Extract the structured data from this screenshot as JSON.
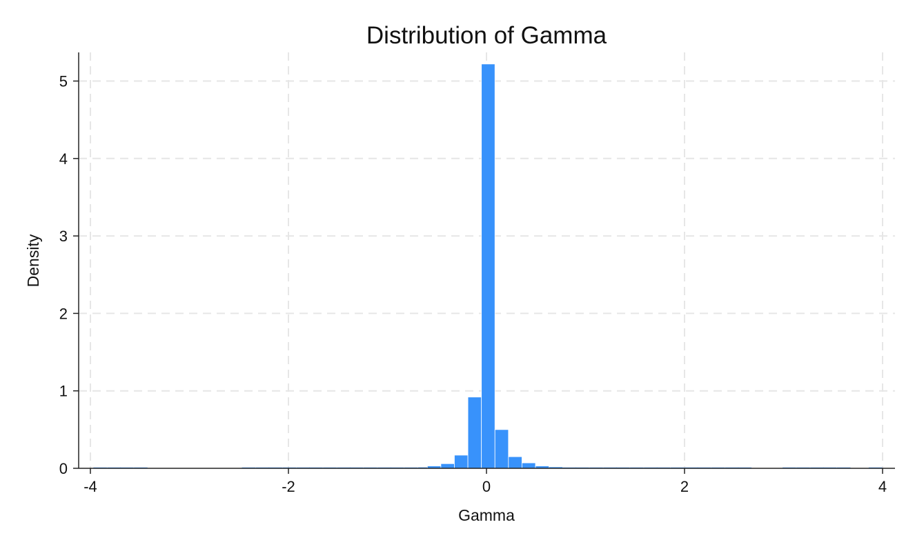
{
  "chart_data": {
    "type": "bar",
    "title": "Distribution of Gamma",
    "xlabel": "Gamma",
    "ylabel": "Density",
    "xlim": [
      -4.1,
      4.1
    ],
    "ylim": [
      0,
      5.35
    ],
    "x_ticks": [
      "-4",
      "-2",
      "0",
      "2",
      "4"
    ],
    "y_ticks": [
      "0",
      "1",
      "2",
      "3",
      "4",
      "5"
    ],
    "grid": true,
    "bar_color": "#3892fb",
    "bin_width": 0.1365,
    "bins": [
      {
        "x0": -3.97,
        "value": 0.004
      },
      {
        "x0": -3.83,
        "value": 0.003
      },
      {
        "x0": -3.7,
        "value": 0.003
      },
      {
        "x0": -3.56,
        "value": 0.003
      },
      {
        "x0": -2.47,
        "value": 0.005
      },
      {
        "x0": -2.33,
        "value": 0.005
      },
      {
        "x0": -2.2,
        "value": 0.005
      },
      {
        "x0": -2.06,
        "value": 0.005
      },
      {
        "x0": -1.92,
        "value": 0.005
      },
      {
        "x0": -1.79,
        "value": 0.005
      },
      {
        "x0": -1.65,
        "value": 0.005
      },
      {
        "x0": -1.51,
        "value": 0.005
      },
      {
        "x0": -1.38,
        "value": 0.005
      },
      {
        "x0": -1.24,
        "value": 0.005
      },
      {
        "x0": -1.1,
        "value": 0.006
      },
      {
        "x0": -0.97,
        "value": 0.007
      },
      {
        "x0": -0.83,
        "value": 0.008
      },
      {
        "x0": -0.69,
        "value": 0.012
      },
      {
        "x0": -0.5972,
        "value": 0.03
      },
      {
        "x0": -0.4607,
        "value": 0.06
      },
      {
        "x0": -0.3242,
        "value": 0.17
      },
      {
        "x0": -0.1877,
        "value": 0.92
      },
      {
        "x0": -0.0512,
        "value": 5.22
      },
      {
        "x0": 0.0853,
        "value": 0.5
      },
      {
        "x0": 0.2218,
        "value": 0.15
      },
      {
        "x0": 0.3583,
        "value": 0.07
      },
      {
        "x0": 0.4948,
        "value": 0.03
      },
      {
        "x0": 0.6313,
        "value": 0.015
      },
      {
        "x0": 0.77,
        "value": 0.01
      },
      {
        "x0": 0.9,
        "value": 0.007
      },
      {
        "x0": 1.04,
        "value": 0.006
      },
      {
        "x0": 1.18,
        "value": 0.005
      },
      {
        "x0": 1.31,
        "value": 0.005
      },
      {
        "x0": 1.45,
        "value": 0.005
      },
      {
        "x0": 1.59,
        "value": 0.005
      },
      {
        "x0": 1.72,
        "value": 0.005
      },
      {
        "x0": 1.86,
        "value": 0.005
      },
      {
        "x0": 2.0,
        "value": 0.005
      },
      {
        "x0": 2.13,
        "value": 0.005
      },
      {
        "x0": 2.27,
        "value": 0.005
      },
      {
        "x0": 2.41,
        "value": 0.005
      },
      {
        "x0": 2.54,
        "value": 0.005
      },
      {
        "x0": 2.99,
        "value": 0.005
      },
      {
        "x0": 3.13,
        "value": 0.005
      },
      {
        "x0": 3.27,
        "value": 0.005
      },
      {
        "x0": 3.4,
        "value": 0.005
      },
      {
        "x0": 3.54,
        "value": 0.005
      },
      {
        "x0": 3.86,
        "value": 0.008
      }
    ]
  }
}
